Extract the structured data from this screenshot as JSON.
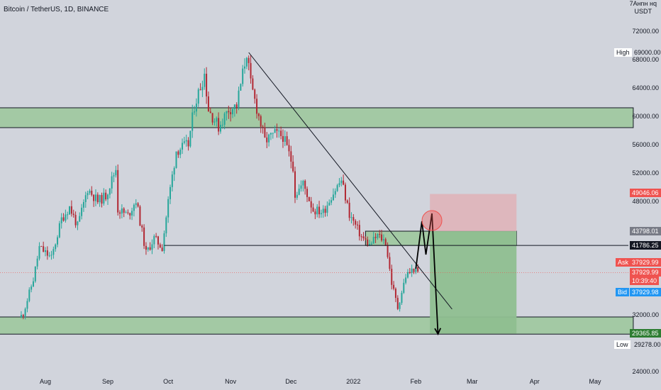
{
  "symbol": "Bitcoin / TetherUS, 1D, BINANCE",
  "currency": [
    "7Анnн нq",
    "USDT"
  ],
  "colors": {
    "background": "#d1d4dc",
    "up": "#26a69a",
    "down": "#b22833",
    "zone_fill": "#a3c9a4",
    "target_fill": "#8fbf90",
    "stop_fill": "#e0b2b7",
    "ask": "#ef5350",
    "bid": "#2196f3",
    "highlight": "#ef5350"
  },
  "tags": {
    "high_label": "High",
    "high_value": "69000.00",
    "stop_value": "49046.06",
    "entry_value": "43798.01",
    "level_value": "41786.25",
    "ask_label": "Ask",
    "ask_value": "37929.99",
    "last_value": "37929.99",
    "countdown": "10:39:40",
    "bid_label": "Bid",
    "bid_value": "37929.98",
    "target_value": "29365.85",
    "low_label": "Low",
    "low_value": "29278.00"
  },
  "chart_data": {
    "type": "candlestick",
    "title": "Bitcoin / TetherUS, 1D, BINANCE",
    "y_axis_unit": "USDT",
    "y_ticks": [
      24000,
      28000,
      32000,
      36000,
      40000,
      44000,
      48000,
      52000,
      56000,
      60000,
      64000,
      68000,
      72000
    ],
    "y_tick_labels": [
      "24000.00",
      "",
      "32000.00",
      "",
      "",
      "",
      "48000.00",
      "52000.00",
      "56000.00",
      "60000.00",
      "64000.00",
      "68000.00",
      "72000.00"
    ],
    "x_tick_labels": [
      "Aug",
      "Sep",
      "Oct",
      "Nov",
      "Dec",
      "2022",
      "Feb",
      "Mar",
      "Apr",
      "May"
    ],
    "x_tick_dates": [
      "2021-08-01",
      "2021-09-01",
      "2021-10-01",
      "2021-11-01",
      "2021-12-01",
      "2022-01-01",
      "2022-02-01",
      "2022-03-01",
      "2022-04-01",
      "2022-05-01"
    ],
    "price_path": [
      [
        "2021-07-20",
        31500
      ],
      [
        "2021-07-22",
        32200
      ],
      [
        "2021-07-27",
        37000
      ],
      [
        "2021-07-30",
        41500
      ],
      [
        "2021-08-05",
        40000
      ],
      [
        "2021-08-10",
        45500
      ],
      [
        "2021-08-14",
        47200
      ],
      [
        "2021-08-18",
        44500
      ],
      [
        "2021-08-23",
        49800
      ],
      [
        "2021-08-28",
        48000
      ],
      [
        "2021-09-01",
        48800
      ],
      [
        "2021-09-06",
        52600
      ],
      [
        "2021-09-07",
        46900
      ],
      [
        "2021-09-12",
        46000
      ],
      [
        "2021-09-16",
        48200
      ],
      [
        "2021-09-21",
        40700
      ],
      [
        "2021-09-25",
        42800
      ],
      [
        "2021-09-29",
        41500
      ],
      [
        "2021-10-02",
        48000
      ],
      [
        "2021-10-06",
        55200
      ],
      [
        "2021-10-12",
        56000
      ],
      [
        "2021-10-15",
        61500
      ],
      [
        "2021-10-20",
        66000
      ],
      [
        "2021-10-22",
        61000
      ],
      [
        "2021-10-27",
        58500
      ],
      [
        "2021-11-01",
        61000
      ],
      [
        "2021-11-05",
        61500
      ],
      [
        "2021-11-10",
        69000
      ],
      [
        "2021-11-12",
        64500
      ],
      [
        "2021-11-16",
        60000
      ],
      [
        "2021-11-19",
        56500
      ],
      [
        "2021-11-24",
        57500
      ],
      [
        "2021-11-28",
        57200
      ],
      [
        "2021-12-03",
        53000
      ],
      [
        "2021-12-04",
        49000
      ],
      [
        "2021-12-08",
        50500
      ],
      [
        "2021-12-13",
        46800
      ],
      [
        "2021-12-18",
        46500
      ],
      [
        "2021-12-22",
        48800
      ],
      [
        "2021-12-27",
        51000
      ],
      [
        "2021-12-31",
        46200
      ],
      [
        "2022-01-06",
        43000
      ],
      [
        "2022-01-10",
        41800
      ],
      [
        "2022-01-14",
        43200
      ],
      [
        "2022-01-18",
        42300
      ],
      [
        "2022-01-21",
        36500
      ],
      [
        "2022-01-24",
        33000
      ],
      [
        "2022-01-28",
        37500
      ],
      [
        "2022-02-01",
        38500
      ],
      [
        "2022-02-03",
        37930
      ]
    ],
    "zones": [
      {
        "from_date": "2021-07-01",
        "to_date": "2022-05-20",
        "low": 58400,
        "high": 61200
      },
      {
        "from_date": "2022-01-07",
        "to_date": "2022-03-23",
        "low": 41786.25,
        "high": 43798.01
      },
      {
        "from_date": "2021-07-01",
        "to_date": "2022-05-20",
        "low": 29278,
        "high": 31700
      }
    ],
    "trendline": {
      "from": [
        "2021-11-10",
        69000
      ],
      "to": [
        "2022-02-19",
        32800
      ]
    },
    "horizontal_level": {
      "from_date": "2021-09-29",
      "value": 41786.25
    },
    "position": {
      "from_date": "2022-02-08",
      "to_date": "2022-03-23",
      "entry": 43798.01,
      "stop": 49046.06,
      "target": 29365.85
    },
    "projection": [
      [
        "2022-02-01",
        38500
      ],
      [
        "2022-02-04",
        45200
      ],
      [
        "2022-02-06",
        40500
      ],
      [
        "2022-02-09",
        46300
      ],
      [
        "2022-02-12",
        29300
      ]
    ],
    "highlight_circle": {
      "date": "2022-02-09",
      "price": 45300
    }
  }
}
